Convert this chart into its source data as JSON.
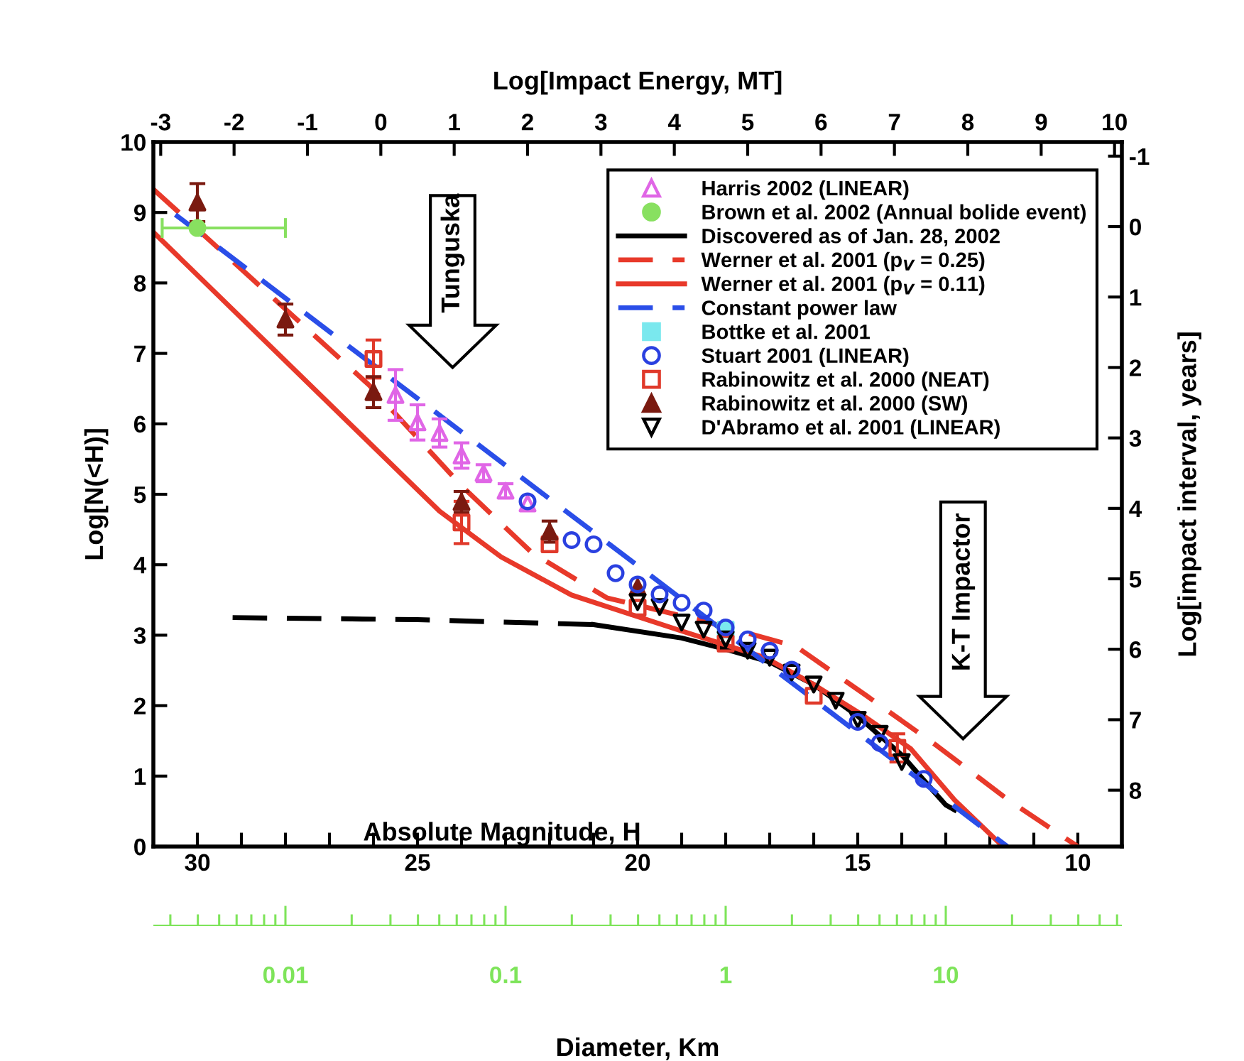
{
  "chart_data": [
    {
      "type": "scatter",
      "xlabel": "Absolute Magnitude, H",
      "ylabel": "Log[N(<H)]",
      "x2label": "Log[Impact Energy, MT]",
      "y2label": "Log[impact interval, years]",
      "xlim": [
        31,
        9
      ],
      "ylim": [
        0,
        10
      ],
      "x2lim": [
        -3.1,
        10.1
      ],
      "y2lim": [
        8.8,
        -1.2
      ],
      "xticks": [
        30,
        {
          "value": 29,
          "label": null
        },
        {
          "value": 28,
          "label": null
        },
        {
          "value": 27,
          "label": null
        },
        {
          "value": 26,
          "label": null
        },
        25,
        {
          "value": 24,
          "label": null
        },
        {
          "value": 23,
          "label": null
        },
        {
          "value": 22,
          "label": null
        },
        {
          "value": 21,
          "label": null
        },
        20,
        {
          "value": 19,
          "label": null
        },
        {
          "value": 18,
          "label": null
        },
        {
          "value": 17,
          "label": null
        },
        {
          "value": 16,
          "label": null
        },
        15,
        {
          "value": 14,
          "label": null
        },
        {
          "value": 13,
          "label": null
        },
        {
          "value": 12,
          "label": null
        },
        {
          "value": 11,
          "label": null
        },
        10
      ],
      "yticks": [
        0,
        1,
        2,
        3,
        4,
        5,
        6,
        7,
        8,
        9,
        10
      ],
      "x2ticks": [
        -3,
        -2,
        -1,
        0,
        1,
        2,
        3,
        4,
        5,
        6,
        7,
        8,
        9,
        10
      ],
      "y2ticks": [
        -1,
        0,
        1,
        2,
        3,
        4,
        5,
        6,
        7,
        8
      ],
      "grid": false,
      "legend": "top right",
      "annotations": [
        "Tunguska",
        "K-T Impactor"
      ],
      "series": [
        {
          "name": "Harris 2002 (LINEAR)",
          "marker": "triangle_open",
          "color": "#e066e6",
          "x": [
            25.5,
            25.0,
            24.5,
            24.0,
            23.5,
            23.0,
            22.5
          ],
          "values": [
            6.41,
            6.02,
            5.87,
            5.55,
            5.3,
            5.05,
            4.87
          ],
          "errors": [
            0.36,
            0.25,
            0.2,
            0.18,
            0.12,
            0.1,
            null
          ]
        },
        {
          "name": "Brown et al. 2002 (Annual bolide event)",
          "marker": "circle",
          "color": "#88e060",
          "x": [
            30.0
          ],
          "values": [
            8.78
          ],
          "xerrors": [
            [
              28.0,
              30.8
            ]
          ]
        },
        {
          "name": "Discovered as of Jan. 28, 2002",
          "type": "line",
          "line_style": "solid",
          "color": "#000000",
          "x": [
            21.0,
            19.0,
            18.0,
            17.0,
            16.0,
            15.0,
            14.0,
            13.3,
            13.0,
            12.8
          ],
          "values": [
            3.15,
            2.96,
            2.8,
            2.62,
            2.3,
            1.85,
            1.3,
            0.8,
            0.59,
            0.52
          ]
        },
        {
          "type": "line",
          "line_style": "dashed",
          "color": "#000000",
          "x": [
            29.2,
            25.0,
            21.0
          ],
          "values": [
            3.25,
            3.22,
            3.15
          ]
        },
        {
          "name": "Werner et al. 2001 (p$_{V}$ = 0.25)",
          "type": "line",
          "line_style": "dashed",
          "color": "#e8392a",
          "x": [
            31.0,
            26.1,
            24.0,
            22.4,
            20.7,
            18.5,
            16.4,
            14.8,
            13.2,
            11.6,
            10.0
          ],
          "values": [
            9.33,
            6.55,
            5.12,
            4.17,
            3.53,
            3.2,
            2.84,
            2.14,
            1.43,
            0.67,
            0.0
          ]
        },
        {
          "name": "Werner et al. 2001 (p$_{V}$ = 0.11)",
          "type": "line",
          "line_style": "solid",
          "color": "#e8392a",
          "x": [
            31.0,
            24.5,
            23.1,
            21.5,
            19.0,
            17.1,
            16.0,
            14.9,
            13.8,
            12.8,
            11.7
          ],
          "values": [
            8.72,
            4.76,
            4.11,
            3.57,
            3.06,
            2.68,
            2.3,
            1.87,
            1.39,
            0.66,
            0.0
          ]
        },
        {
          "name": "Constant power law",
          "type": "line",
          "line_style": "dashed",
          "color": "#2a4ee8",
          "x": [
            30.5,
            11.6
          ],
          "values": [
            8.97,
            0.0
          ]
        },
        {
          "name": "Bottke et al. 2001",
          "marker": "square",
          "color": "#7ae8ee",
          "x": [
            18.0
          ],
          "values": [
            3.08
          ]
        },
        {
          "name": "Stuart 2001 (LINEAR)",
          "marker": "circle_open",
          "color": "#2a40e0",
          "x": [
            22.5,
            21.5,
            21.0,
            20.5,
            20.0,
            19.5,
            19.0,
            18.5,
            18.0,
            17.5,
            17.0,
            16.5,
            15.0,
            14.5,
            13.5
          ],
          "values": [
            4.9,
            4.35,
            4.29,
            3.88,
            3.72,
            3.58,
            3.46,
            3.35,
            3.11,
            2.94,
            2.78,
            2.51,
            1.77,
            1.47,
            0.96
          ]
        },
        {
          "name": "Rabinowitz et al. 2000 (NEAT)",
          "marker": "square_open",
          "color": "#e0392a",
          "x": [
            26.0,
            24.0,
            22.0,
            20.0,
            18.0,
            16.0,
            14.1
          ],
          "values": [
            6.92,
            4.6,
            4.29,
            3.39,
            2.88,
            2.14,
            1.4
          ],
          "errors": [
            0.27,
            0.3,
            null,
            null,
            null,
            null,
            0.2
          ]
        },
        {
          "name": "Rabinowitz et al. 2000 (SW)",
          "marker": "triangle",
          "color": "#7a1a10",
          "x": [
            30.0,
            28.0,
            26.0,
            24.0,
            22.0,
            20.0
          ],
          "values": [
            9.14,
            7.48,
            6.45,
            4.89,
            4.47,
            3.68
          ],
          "errors": [
            0.27,
            0.22,
            0.22,
            0.15,
            0.15,
            null
          ]
        },
        {
          "name": "D'Abramo et al. 2001 (LINEAR)",
          "marker": "triangle_down_open",
          "color": "#000000",
          "x": [
            20.0,
            19.5,
            19.0,
            18.5,
            18.0,
            17.5,
            17.0,
            16.5,
            16.0,
            15.5,
            15.0,
            14.5,
            14.0
          ],
          "values": [
            3.47,
            3.4,
            3.18,
            3.08,
            2.94,
            2.78,
            2.68,
            2.47,
            2.3,
            2.07,
            1.8,
            1.6,
            1.2
          ]
        }
      ]
    },
    {
      "type": "other",
      "xlabel": "Diameter, Km",
      "annotations": [
        "0.01",
        "0.1",
        "1",
        "10"
      ]
    }
  ]
}
